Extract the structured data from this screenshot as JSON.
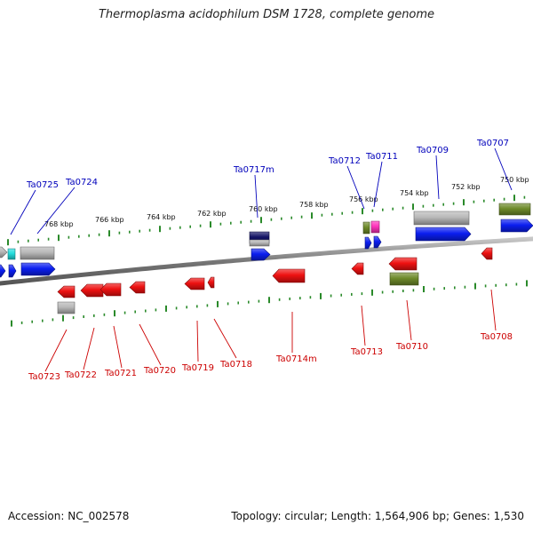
{
  "title": "Thermoplasma acidophilum DSM 1728, complete genome",
  "footer": {
    "accession": "Accession: NC_002578",
    "topology": "Topology: circular; Length: 1,564,906 bp; Genes: 1,530"
  },
  "colors": {
    "backbone": "#777777",
    "forward_label": "#0000bb",
    "reverse_label": "#cc0000",
    "tick": "#2a8a2a",
    "gene_blue": "#0b1ef0",
    "gene_red": "#ee1111",
    "gene_gray": "#b8b8b8",
    "gene_olive": "#6e8a2a",
    "gene_navy": "#141465",
    "gene_cyan": "#22dddd",
    "gene_magenta": "#ff33bb"
  },
  "kbp_labels": [
    "750 kbp",
    "752 kbp",
    "754 kbp",
    "756 kbp",
    "758 kbp",
    "760 kbp",
    "762 kbp",
    "764 kbp",
    "766 kbp",
    "768 kbp"
  ],
  "forward_gene_labels": [
    "Ta0725",
    "Ta0724",
    "Ta0717m",
    "Ta0712",
    "Ta0711",
    "Ta0709",
    "Ta0707"
  ],
  "reverse_gene_labels": [
    "Ta0723",
    "Ta0722",
    "Ta0721",
    "Ta0720",
    "Ta0719",
    "Ta0718",
    "Ta0714m",
    "Ta0713",
    "Ta0710",
    "Ta0708"
  ]
}
